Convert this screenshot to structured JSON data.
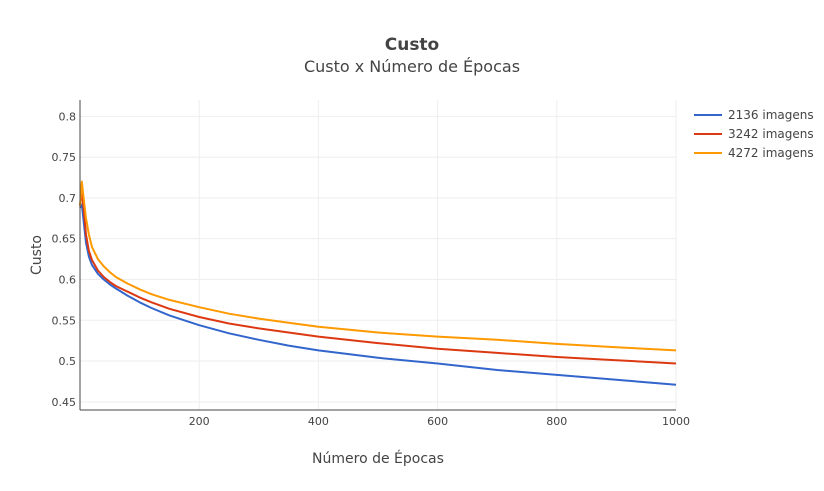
{
  "chart_data": {
    "type": "line",
    "title": "Custo",
    "subtitle": "Custo x Número de Épocas",
    "xlabel": "Número de Épocas",
    "ylabel": "Custo",
    "xlim": [
      0,
      1000
    ],
    "ylim": [
      0.44,
      0.82
    ],
    "x_ticks": [
      200,
      400,
      600,
      800,
      1000
    ],
    "x_tick_labels": [
      "200",
      "400",
      "600",
      "800",
      "1000"
    ],
    "y_ticks": [
      0.45,
      0.5,
      0.55,
      0.6,
      0.65,
      0.7,
      0.75,
      0.8
    ],
    "y_tick_labels": [
      "0.45",
      "0.5",
      "0.55",
      "0.6",
      "0.65",
      "0.7",
      "0.75",
      "0.8"
    ],
    "grid": true,
    "legend_position": "top-right",
    "series": [
      {
        "name": "2136 imagens",
        "color": "#3366cc",
        "x": [
          0,
          3,
          6,
          10,
          15,
          20,
          30,
          40,
          50,
          60,
          80,
          100,
          120,
          150,
          200,
          250,
          300,
          350,
          400,
          500,
          600,
          700,
          800,
          900,
          1000
        ],
        "y": [
          0.688,
          0.692,
          0.672,
          0.645,
          0.628,
          0.618,
          0.607,
          0.6,
          0.594,
          0.589,
          0.58,
          0.572,
          0.565,
          0.556,
          0.544,
          0.534,
          0.526,
          0.519,
          0.513,
          0.504,
          0.497,
          0.489,
          0.483,
          0.477,
          0.471
        ]
      },
      {
        "name": "3242 imagens",
        "color": "#dc3912",
        "x": [
          0,
          3,
          6,
          10,
          15,
          20,
          30,
          40,
          50,
          60,
          80,
          100,
          120,
          150,
          200,
          250,
          300,
          350,
          400,
          500,
          600,
          700,
          800,
          900,
          1000
        ],
        "y": [
          0.69,
          0.708,
          0.688,
          0.655,
          0.635,
          0.624,
          0.611,
          0.603,
          0.597,
          0.592,
          0.585,
          0.578,
          0.572,
          0.564,
          0.554,
          0.546,
          0.54,
          0.535,
          0.53,
          0.522,
          0.515,
          0.51,
          0.505,
          0.501,
          0.497
        ]
      },
      {
        "name": "4272 imagens",
        "color": "#ff9900",
        "x": [
          0,
          3,
          6,
          10,
          15,
          20,
          30,
          40,
          50,
          60,
          80,
          100,
          120,
          150,
          200,
          250,
          300,
          350,
          400,
          500,
          600,
          700,
          800,
          900,
          1000
        ],
        "y": [
          0.69,
          0.72,
          0.7,
          0.675,
          0.655,
          0.64,
          0.625,
          0.616,
          0.609,
          0.603,
          0.595,
          0.588,
          0.582,
          0.575,
          0.566,
          0.558,
          0.552,
          0.547,
          0.542,
          0.535,
          0.53,
          0.526,
          0.521,
          0.517,
          0.513
        ]
      }
    ]
  }
}
